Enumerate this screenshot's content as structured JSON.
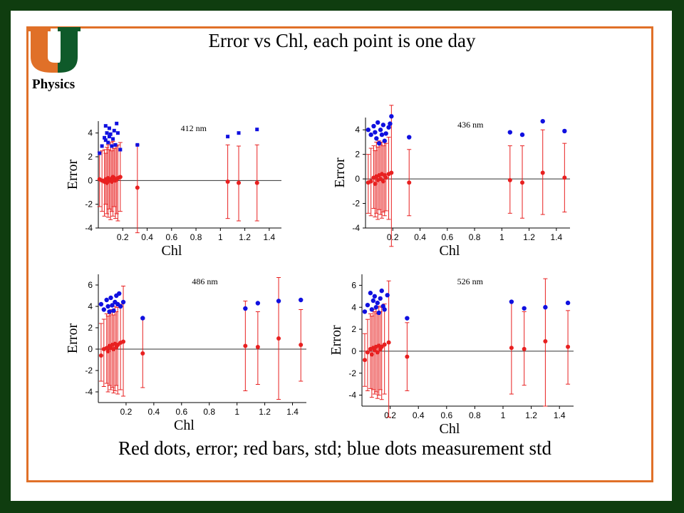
{
  "title": "Error vs Chl, each point is one day",
  "caption": "Red dots, error; red bars, std; blue dots measurement std",
  "logo": {
    "text": "Physics",
    "colors": {
      "orange": "#e07028",
      "green": "#0f5a2a"
    }
  },
  "colors": {
    "background": "#0f3d0f",
    "frame": "#e07028",
    "error": "#e82020",
    "std": "#1010e0"
  },
  "chart_data": [
    {
      "type": "scatter",
      "title": "412 nm",
      "xlabel": "Chl",
      "ylabel": "Error",
      "xlim": [
        0,
        1.5
      ],
      "ylim": [
        -4,
        5
      ],
      "xticks": [
        0.2,
        0.4,
        0.6,
        0.8,
        1,
        1.2,
        1.4
      ],
      "yticks": [
        4,
        2,
        0,
        -2,
        -4
      ],
      "series": [
        {
          "values": [
            {
              "x": 0.01,
              "y": 0.1,
              "lo": -2.2,
              "hi": 2.4
            },
            {
              "x": 0.03,
              "y": 0.0,
              "lo": -2.6,
              "hi": 2.5
            },
            {
              "x": 0.05,
              "y": -0.1,
              "lo": -3.0,
              "hi": 2.6
            },
            {
              "x": 0.06,
              "y": 0.1,
              "lo": -2.0,
              "hi": 2.3
            },
            {
              "x": 0.07,
              "y": -0.2,
              "lo": -2.8,
              "hi": 2.8
            },
            {
              "x": 0.08,
              "y": 0.2,
              "lo": -3.1,
              "hi": 3.0
            },
            {
              "x": 0.09,
              "y": 0.0,
              "lo": -2.4,
              "hi": 2.6
            },
            {
              "x": 0.1,
              "y": 0.1,
              "lo": -3.3,
              "hi": 3.2
            },
            {
              "x": 0.11,
              "y": -0.1,
              "lo": -2.6,
              "hi": 2.5
            },
            {
              "x": 0.12,
              "y": 0.3,
              "lo": -3.0,
              "hi": 3.3
            },
            {
              "x": 0.13,
              "y": 0.2,
              "lo": -2.2,
              "hi": 2.7
            },
            {
              "x": 0.14,
              "y": 0.0,
              "lo": -3.2,
              "hi": 2.9
            },
            {
              "x": 0.15,
              "y": 0.1,
              "lo": -2.8,
              "hi": 2.9
            },
            {
              "x": 0.16,
              "y": 0.2,
              "lo": -3.4,
              "hi": 3.0
            },
            {
              "x": 0.18,
              "y": 0.3,
              "lo": -2.6,
              "hi": 3.2
            },
            {
              "x": 0.32,
              "y": -0.6,
              "lo": -4.4,
              "hi": 3.0
            },
            {
              "x": 1.06,
              "y": -0.1,
              "lo": -3.2,
              "hi": 3.0
            },
            {
              "x": 1.15,
              "y": -0.2,
              "lo": -3.4,
              "hi": 2.9
            },
            {
              "x": 1.3,
              "y": -0.2,
              "lo": -3.4,
              "hi": 3.0
            }
          ]
        },
        {
          "values": [
            {
              "x": 0.01,
              "y": 2.3
            },
            {
              "x": 0.03,
              "y": 2.9
            },
            {
              "x": 0.05,
              "y": 3.6
            },
            {
              "x": 0.06,
              "y": 4.6
            },
            {
              "x": 0.06,
              "y": 3.4
            },
            {
              "x": 0.07,
              "y": 4.0
            },
            {
              "x": 0.08,
              "y": 3.2
            },
            {
              "x": 0.09,
              "y": 4.4
            },
            {
              "x": 0.09,
              "y": 3.7
            },
            {
              "x": 0.1,
              "y": 3.9
            },
            {
              "x": 0.11,
              "y": 2.9
            },
            {
              "x": 0.12,
              "y": 3.5
            },
            {
              "x": 0.13,
              "y": 4.2
            },
            {
              "x": 0.14,
              "y": 3.0
            },
            {
              "x": 0.15,
              "y": 4.8
            },
            {
              "x": 0.16,
              "y": 4.0
            },
            {
              "x": 0.18,
              "y": 2.6
            },
            {
              "x": 0.32,
              "y": 3.0
            },
            {
              "x": 1.06,
              "y": 3.7
            },
            {
              "x": 1.15,
              "y": 4.0
            },
            {
              "x": 1.3,
              "y": 4.3
            }
          ]
        }
      ]
    },
    {
      "type": "scatter",
      "title": "436 nm",
      "xlabel": "Chl",
      "ylabel": "Error",
      "xlim": [
        0,
        1.5
      ],
      "ylim": [
        -4,
        5
      ],
      "xticks": [
        0.2,
        0.4,
        0.6,
        0.8,
        1,
        1.2,
        1.4
      ],
      "yticks": [
        4,
        2,
        0,
        -2,
        -4
      ],
      "series": [
        {
          "values": [
            {
              "x": 0.02,
              "y": -0.3,
              "lo": -2.8,
              "hi": 2.0
            },
            {
              "x": 0.04,
              "y": -0.2,
              "lo": -3.0,
              "hi": 2.5
            },
            {
              "x": 0.06,
              "y": 0.1,
              "lo": -2.4,
              "hi": 2.7
            },
            {
              "x": 0.07,
              "y": -0.4,
              "lo": -3.1,
              "hi": 2.3
            },
            {
              "x": 0.08,
              "y": 0.2,
              "lo": -2.8,
              "hi": 3.0
            },
            {
              "x": 0.09,
              "y": -0.1,
              "lo": -3.3,
              "hi": 2.6
            },
            {
              "x": 0.1,
              "y": 0.3,
              "lo": -2.5,
              "hi": 3.1
            },
            {
              "x": 0.11,
              "y": 0.0,
              "lo": -2.9,
              "hi": 2.8
            },
            {
              "x": 0.12,
              "y": 0.4,
              "lo": -3.2,
              "hi": 3.0
            },
            {
              "x": 0.13,
              "y": -0.2,
              "lo": -2.7,
              "hi": 2.7
            },
            {
              "x": 0.14,
              "y": 0.3,
              "lo": -3.0,
              "hi": 3.1
            },
            {
              "x": 0.15,
              "y": 0.1,
              "lo": -2.6,
              "hi": 2.9
            },
            {
              "x": 0.17,
              "y": 0.4,
              "lo": -3.3,
              "hi": 3.4
            },
            {
              "x": 0.19,
              "y": 0.5,
              "lo": -5.5,
              "hi": 6.0
            },
            {
              "x": 0.32,
              "y": -0.3,
              "lo": -3.0,
              "hi": 2.4
            },
            {
              "x": 1.06,
              "y": -0.1,
              "lo": -2.8,
              "hi": 2.7
            },
            {
              "x": 1.15,
              "y": -0.3,
              "lo": -3.2,
              "hi": 2.7
            },
            {
              "x": 1.3,
              "y": 0.5,
              "lo": -2.9,
              "hi": 4.0
            },
            {
              "x": 1.46,
              "y": 0.1,
              "lo": -2.7,
              "hi": 2.9
            }
          ]
        },
        {
          "values": [
            {
              "x": 0.02,
              "y": 4.0
            },
            {
              "x": 0.04,
              "y": 3.6
            },
            {
              "x": 0.06,
              "y": 4.3
            },
            {
              "x": 0.07,
              "y": 3.8
            },
            {
              "x": 0.08,
              "y": 3.3
            },
            {
              "x": 0.09,
              "y": 4.6
            },
            {
              "x": 0.1,
              "y": 2.9
            },
            {
              "x": 0.11,
              "y": 4.0
            },
            {
              "x": 0.12,
              "y": 3.6
            },
            {
              "x": 0.13,
              "y": 4.4
            },
            {
              "x": 0.14,
              "y": 3.1
            },
            {
              "x": 0.15,
              "y": 3.7
            },
            {
              "x": 0.17,
              "y": 4.2
            },
            {
              "x": 0.18,
              "y": 4.5
            },
            {
              "x": 0.19,
              "y": 5.1
            },
            {
              "x": 0.32,
              "y": 3.4
            },
            {
              "x": 1.06,
              "y": 3.8
            },
            {
              "x": 1.15,
              "y": 3.6
            },
            {
              "x": 1.3,
              "y": 4.7
            },
            {
              "x": 1.46,
              "y": 3.9
            }
          ]
        }
      ]
    },
    {
      "type": "scatter",
      "title": "486 nm",
      "xlabel": "Chl",
      "ylabel": "Error",
      "xlim": [
        0,
        1.5
      ],
      "ylim": [
        -5,
        7
      ],
      "xticks": [
        0.2,
        0.4,
        0.6,
        0.8,
        1,
        1.2,
        1.4
      ],
      "yticks": [
        6,
        4,
        2,
        0,
        -2,
        -4
      ],
      "series": [
        {
          "values": [
            {
              "x": 0.02,
              "y": -0.6,
              "lo": -3.0,
              "hi": 2.4
            },
            {
              "x": 0.04,
              "y": 0.0,
              "lo": -3.5,
              "hi": 2.8
            },
            {
              "x": 0.06,
              "y": 0.1,
              "lo": -3.2,
              "hi": 3.3
            },
            {
              "x": 0.07,
              "y": -0.2,
              "lo": -4.0,
              "hi": 3.1
            },
            {
              "x": 0.08,
              "y": 0.3,
              "lo": -3.4,
              "hi": 3.6
            },
            {
              "x": 0.09,
              "y": 0.1,
              "lo": -3.8,
              "hi": 3.5
            },
            {
              "x": 0.1,
              "y": 0.4,
              "lo": -3.6,
              "hi": 3.7
            },
            {
              "x": 0.11,
              "y": 0.0,
              "lo": -4.1,
              "hi": 3.2
            },
            {
              "x": 0.12,
              "y": 0.5,
              "lo": -3.9,
              "hi": 4.0
            },
            {
              "x": 0.13,
              "y": 0.2,
              "lo": -3.4,
              "hi": 3.5
            },
            {
              "x": 0.14,
              "y": 0.4,
              "lo": -4.2,
              "hi": 3.9
            },
            {
              "x": 0.16,
              "y": 0.6,
              "lo": -3.8,
              "hi": 4.2
            },
            {
              "x": 0.18,
              "y": 0.7,
              "lo": -4.4,
              "hi": 5.9
            },
            {
              "x": 0.32,
              "y": -0.4,
              "lo": -3.6,
              "hi": 2.8
            },
            {
              "x": 1.06,
              "y": 0.3,
              "lo": -3.9,
              "hi": 4.5
            },
            {
              "x": 1.15,
              "y": 0.2,
              "lo": -3.3,
              "hi": 3.5
            },
            {
              "x": 1.3,
              "y": 1.0,
              "lo": -4.7,
              "hi": 6.7
            },
            {
              "x": 1.46,
              "y": 0.4,
              "lo": -3.0,
              "hi": 3.7
            }
          ]
        },
        {
          "values": [
            {
              "x": 0.02,
              "y": 4.2
            },
            {
              "x": 0.04,
              "y": 3.7
            },
            {
              "x": 0.06,
              "y": 4.6
            },
            {
              "x": 0.07,
              "y": 4.0
            },
            {
              "x": 0.08,
              "y": 3.5
            },
            {
              "x": 0.09,
              "y": 4.8
            },
            {
              "x": 0.1,
              "y": 4.1
            },
            {
              "x": 0.11,
              "y": 3.6
            },
            {
              "x": 0.12,
              "y": 4.4
            },
            {
              "x": 0.13,
              "y": 5.0
            },
            {
              "x": 0.14,
              "y": 4.2
            },
            {
              "x": 0.15,
              "y": 5.2
            },
            {
              "x": 0.16,
              "y": 4.0
            },
            {
              "x": 0.18,
              "y": 4.4
            },
            {
              "x": 0.32,
              "y": 2.9
            },
            {
              "x": 1.06,
              "y": 3.8
            },
            {
              "x": 1.15,
              "y": 4.3
            },
            {
              "x": 1.3,
              "y": 4.5
            },
            {
              "x": 1.46,
              "y": 4.6
            }
          ]
        }
      ]
    },
    {
      "type": "scatter",
      "title": "526 nm",
      "xlabel": "Chl",
      "ylabel": "Error",
      "xlim": [
        0,
        1.5
      ],
      "ylim": [
        -5,
        7
      ],
      "xticks": [
        0.2,
        0.4,
        0.6,
        0.8,
        1,
        1.2,
        1.4
      ],
      "yticks": [
        6,
        4,
        2,
        0,
        -2,
        -4
      ],
      "series": [
        {
          "values": [
            {
              "x": 0.02,
              "y": -0.8,
              "lo": -3.2,
              "hi": 1.6
            },
            {
              "x": 0.04,
              "y": -0.1,
              "lo": -3.6,
              "hi": 2.9
            },
            {
              "x": 0.06,
              "y": 0.2,
              "lo": -3.4,
              "hi": 3.4
            },
            {
              "x": 0.07,
              "y": -0.3,
              "lo": -4.2,
              "hi": 3.2
            },
            {
              "x": 0.08,
              "y": 0.3,
              "lo": -3.5,
              "hi": 3.8
            },
            {
              "x": 0.09,
              "y": 0.1,
              "lo": -3.9,
              "hi": 3.6
            },
            {
              "x": 0.1,
              "y": 0.4,
              "lo": -3.7,
              "hi": 4.0
            },
            {
              "x": 0.11,
              "y": -0.1,
              "lo": -4.3,
              "hi": 3.4
            },
            {
              "x": 0.12,
              "y": 0.5,
              "lo": -4.0,
              "hi": 4.1
            },
            {
              "x": 0.13,
              "y": 0.2,
              "lo": -3.5,
              "hi": 3.6
            },
            {
              "x": 0.14,
              "y": 0.4,
              "lo": -4.4,
              "hi": 4.0
            },
            {
              "x": 0.16,
              "y": 0.6,
              "lo": -3.9,
              "hi": 4.3
            },
            {
              "x": 0.19,
              "y": 0.8,
              "lo": -6.0,
              "hi": 6.4
            },
            {
              "x": 0.32,
              "y": -0.5,
              "lo": -3.6,
              "hi": 2.6
            },
            {
              "x": 1.06,
              "y": 0.3,
              "lo": -3.9,
              "hi": 4.5
            },
            {
              "x": 1.15,
              "y": 0.2,
              "lo": -3.1,
              "hi": 3.6
            },
            {
              "x": 1.3,
              "y": 0.9,
              "lo": -5.0,
              "hi": 6.6
            },
            {
              "x": 1.46,
              "y": 0.4,
              "lo": -3.0,
              "hi": 3.7
            }
          ]
        },
        {
          "values": [
            {
              "x": 0.02,
              "y": 3.6
            },
            {
              "x": 0.04,
              "y": 4.2
            },
            {
              "x": 0.06,
              "y": 5.3
            },
            {
              "x": 0.07,
              "y": 3.8
            },
            {
              "x": 0.08,
              "y": 4.6
            },
            {
              "x": 0.09,
              "y": 5.0
            },
            {
              "x": 0.1,
              "y": 4.0
            },
            {
              "x": 0.11,
              "y": 4.4
            },
            {
              "x": 0.12,
              "y": 3.5
            },
            {
              "x": 0.13,
              "y": 4.8
            },
            {
              "x": 0.14,
              "y": 5.5
            },
            {
              "x": 0.15,
              "y": 4.1
            },
            {
              "x": 0.16,
              "y": 3.8
            },
            {
              "x": 0.18,
              "y": 5.1
            },
            {
              "x": 0.32,
              "y": 3.0
            },
            {
              "x": 1.06,
              "y": 4.5
            },
            {
              "x": 1.15,
              "y": 3.9
            },
            {
              "x": 1.3,
              "y": 4.0
            },
            {
              "x": 1.46,
              "y": 4.4
            }
          ]
        }
      ]
    }
  ]
}
